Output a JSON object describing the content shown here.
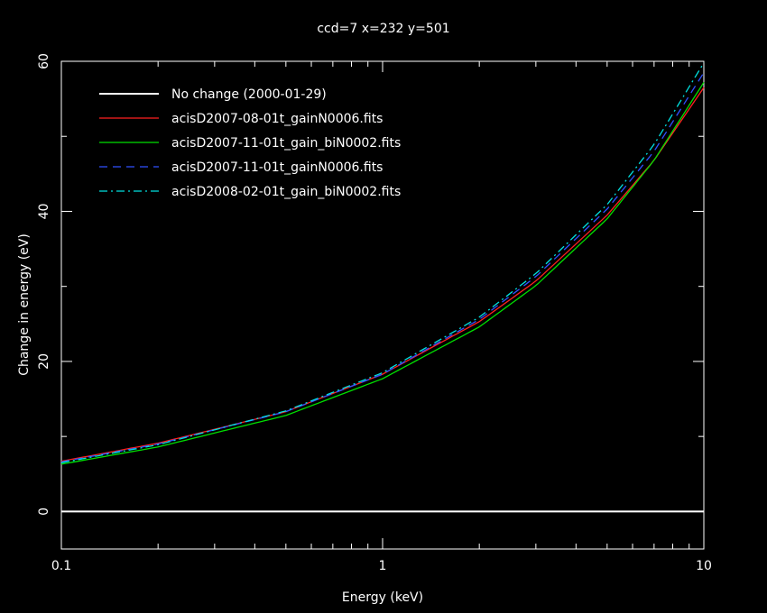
{
  "chart_data": {
    "type": "line",
    "title": "ccd=7 x=232 y=501",
    "xlabel": "Energy (keV)",
    "ylabel": "Change in energy (eV)",
    "xscale": "log",
    "xlim": [
      0.1,
      10
    ],
    "ylim": [
      -5,
      60
    ],
    "grid": false,
    "legend_position": "top-left",
    "background_color": "#000000",
    "x_ticks": [
      {
        "value": 0.1,
        "label": "0.1"
      },
      {
        "value": 1,
        "label": "1"
      },
      {
        "value": 10,
        "label": "10"
      }
    ],
    "y_ticks": [
      {
        "value": 0,
        "label": "0"
      },
      {
        "value": 20,
        "label": "20"
      },
      {
        "value": 40,
        "label": "40"
      },
      {
        "value": 60,
        "label": "60"
      }
    ],
    "series": [
      {
        "name": "No change (2000-01-29)",
        "color": "#ffffff",
        "dash": "solid",
        "x": [
          0.1,
          10
        ],
        "y": [
          0,
          0
        ]
      },
      {
        "name": "acisD2007-08-01t_gainN0006.fits",
        "color": "#ff2020",
        "dash": "solid",
        "x": [
          0.1,
          0.2,
          0.5,
          1,
          2,
          3,
          5,
          7,
          10
        ],
        "y": [
          6.7,
          9.1,
          13.3,
          18.3,
          25.3,
          30.7,
          39.5,
          46.8,
          56.5
        ]
      },
      {
        "name": "acisD2007-11-01t_gain_biN0002.fits",
        "color": "#00e000",
        "dash": "solid",
        "x": [
          0.1,
          0.2,
          0.5,
          1,
          2,
          3,
          5,
          7,
          10
        ],
        "y": [
          6.3,
          8.6,
          12.8,
          17.7,
          24.6,
          30.1,
          39.0,
          46.8,
          57.2
        ]
      },
      {
        "name": "acisD2007-11-01t_gainN0006.fits",
        "color": "#3050ff",
        "dash": "dashed",
        "x": [
          0.1,
          0.2,
          0.5,
          1,
          2,
          3,
          5,
          7,
          10
        ],
        "y": [
          6.6,
          9.0,
          13.3,
          18.3,
          25.6,
          31.3,
          40.3,
          48.0,
          58.5
        ]
      },
      {
        "name": "acisD2008-02-01t_gain_biN0002.fits",
        "color": "#00e0e0",
        "dash": "dashdot",
        "x": [
          0.1,
          0.2,
          0.5,
          1,
          2,
          3,
          5,
          7,
          10
        ],
        "y": [
          6.5,
          8.9,
          13.4,
          18.5,
          25.9,
          31.7,
          40.9,
          48.9,
          59.8
        ]
      }
    ]
  }
}
